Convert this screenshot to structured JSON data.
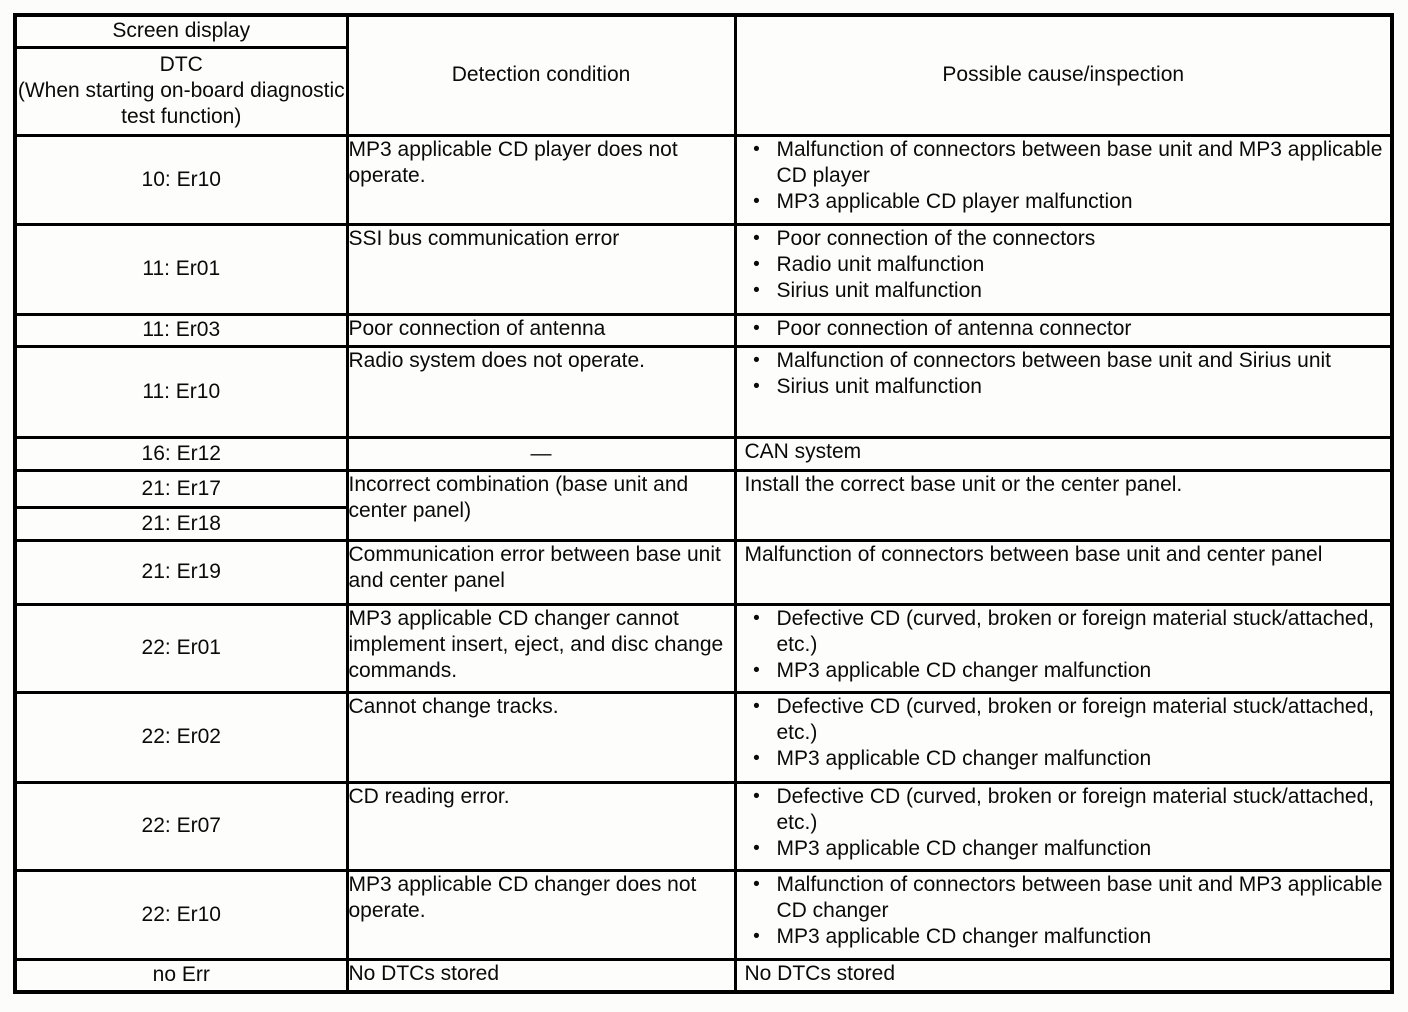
{
  "colors": {
    "border": "#000000",
    "text": "#0a0a0a",
    "paper": "#fdfdfc"
  },
  "glyphs": {
    "bullet": "•"
  },
  "table": {
    "headers": {
      "screen_display": "Screen display",
      "dtc": "DTC\n(When starting on-board diagnostic test function)",
      "detection_condition": "Detection condition",
      "possible_cause": "Possible cause/inspection"
    },
    "rows": [
      {
        "dtc": "10: Er10",
        "detection": "MP3 applicable CD player does not operate.",
        "causes": [
          "Malfunction of connectors between base unit and MP3 applicable CD player",
          "MP3 applicable CD player malfunction"
        ]
      },
      {
        "dtc": "11: Er01",
        "detection": "SSI bus communication error",
        "causes": [
          "Poor connection of the connectors",
          "Radio unit malfunction",
          "Sirius unit malfunction"
        ]
      },
      {
        "dtc": "11: Er03",
        "detection": "Poor connection of antenna",
        "causes": [
          "Poor connection of antenna connector"
        ]
      },
      {
        "dtc": "11: Er10",
        "detection": "Radio system does not operate.",
        "causes": [
          "Malfunction of connectors between base unit and Sirius unit",
          "Sirius unit malfunction"
        ]
      },
      {
        "dtc": "16: Er12",
        "detection": "—",
        "cause_text": "CAN system"
      },
      {
        "dtc": "21: Er17",
        "detection": "Incorrect combination (base unit and center panel)",
        "cause_text": "Install the correct base unit or the center panel."
      },
      {
        "dtc": "21: Er18"
      },
      {
        "dtc": "21: Er19",
        "detection": "Communication error between base unit and center panel",
        "cause_text": "Malfunction of connectors between base unit and center panel"
      },
      {
        "dtc": "22: Er01",
        "detection": "MP3 applicable CD changer cannot implement insert, eject, and disc change commands.",
        "causes": [
          "Defective CD (curved, broken or foreign material stuck/attached, etc.)",
          "MP3 applicable CD changer malfunction"
        ]
      },
      {
        "dtc": "22: Er02",
        "detection": "Cannot change tracks.",
        "causes": [
          "Defective CD (curved, broken or foreign material stuck/attached, etc.)",
          "MP3 applicable CD changer malfunction"
        ]
      },
      {
        "dtc": "22: Er07",
        "detection": "CD reading error.",
        "causes": [
          "Defective CD (curved, broken or foreign material stuck/attached, etc.)",
          "MP3 applicable CD changer malfunction"
        ]
      },
      {
        "dtc": "22: Er10",
        "detection": "MP3 applicable CD changer does not operate.",
        "causes": [
          "Malfunction of connectors between base unit and MP3 applicable CD changer",
          "MP3 applicable CD changer malfunction"
        ]
      },
      {
        "dtc": "no Err",
        "detection": "No DTCs stored",
        "cause_text": "No DTCs stored"
      }
    ]
  }
}
